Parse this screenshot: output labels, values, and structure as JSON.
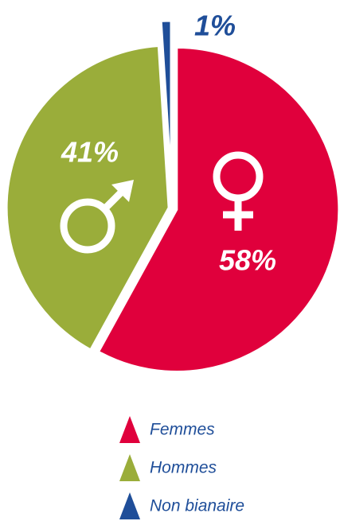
{
  "chart_data": {
    "type": "pie",
    "categories": [
      "Femmes",
      "Hommes",
      "Non bianaire"
    ],
    "values": [
      58,
      41,
      1
    ],
    "value_labels": [
      "58%",
      "41%",
      "1%"
    ],
    "colors": [
      "#e0003c",
      "#9aad3a",
      "#1f4e99"
    ]
  }
}
